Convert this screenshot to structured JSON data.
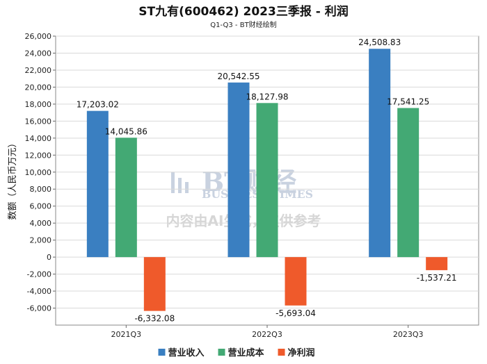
{
  "chart_data": {
    "type": "bar",
    "title": "ST九有(600462) 2023三季报 - 利润",
    "subtitle": "Q1-Q3 - BT财经绘制",
    "xlabel": "",
    "ylabel": "数额（人民币万元）",
    "ylim": [
      -8000,
      26000
    ],
    "yticks": [
      26000,
      24000,
      22000,
      20000,
      18000,
      16000,
      14000,
      12000,
      10000,
      8000,
      6000,
      4000,
      2000,
      0,
      -2000,
      -4000,
      -6000
    ],
    "ytick_labels": [
      "26,000",
      "24,000",
      "22,000",
      "20,000",
      "18,000",
      "16,000",
      "14,000",
      "12,000",
      "10,000",
      "8,000",
      "6,000",
      "4,000",
      "2,000",
      "0",
      "-2,000",
      "-4,000",
      "-6,000"
    ],
    "categories": [
      "2021Q3",
      "2022Q3",
      "2023Q3"
    ],
    "series": [
      {
        "name": "营业收入",
        "color": "#3a7fc1",
        "values": [
          17203.02,
          20542.55,
          24508.83
        ],
        "labels": [
          "17,203.02",
          "20,542.55",
          "24,508.83"
        ]
      },
      {
        "name": "营业成本",
        "color": "#43a974",
        "values": [
          14045.86,
          18127.98,
          17541.25
        ],
        "labels": [
          "14,045.86",
          "18,127.98",
          "17,541.25"
        ]
      },
      {
        "name": "净利润",
        "color": "#ef5a2b",
        "values": [
          -6332.08,
          -5693.04,
          -1537.21
        ],
        "labels": [
          "-6,332.08",
          "-5,693.04",
          "-1,537.21"
        ]
      }
    ],
    "legend_position": "bottom"
  },
  "watermark": {
    "logo_text": "BT财经",
    "sub_text": "BUSINESS TIMES",
    "note": "内容由AI生成，仅供参考"
  }
}
